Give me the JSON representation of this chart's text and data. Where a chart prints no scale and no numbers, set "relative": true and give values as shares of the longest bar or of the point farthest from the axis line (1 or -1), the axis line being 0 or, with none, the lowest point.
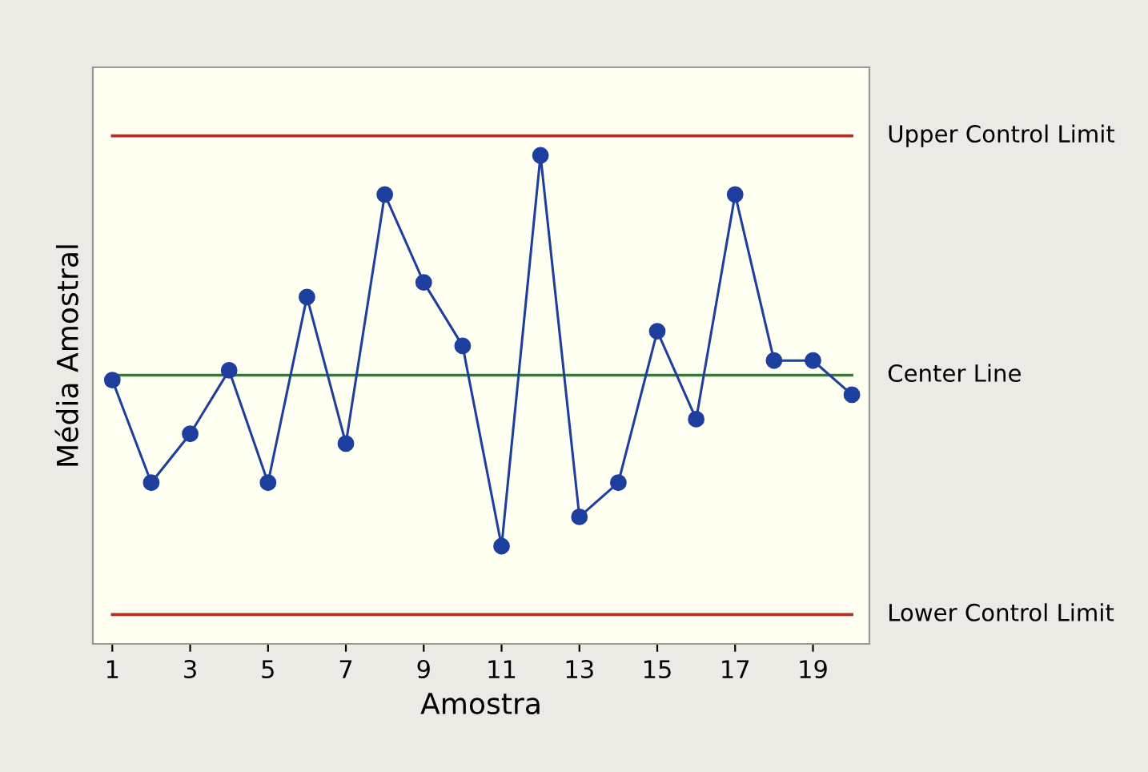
{
  "chart_data": {
    "type": "line",
    "relative": true,
    "xlabel": "Amostra",
    "ylabel": "Média Amostral",
    "x": [
      1,
      2,
      3,
      4,
      5,
      6,
      7,
      8,
      9,
      10,
      11,
      12,
      13,
      14,
      15,
      16,
      17,
      18,
      19,
      20
    ],
    "xlim": [
      0.5,
      20.45
    ],
    "xticks": [
      1,
      3,
      5,
      7,
      9,
      11,
      13,
      15,
      17,
      19
    ],
    "series": [
      {
        "color": "#1f3f9f",
        "values": [
          0.54,
          0.33,
          0.43,
          0.56,
          0.33,
          0.71,
          0.41,
          0.92,
          0.74,
          0.61,
          0.2,
          1,
          0.26,
          0.33,
          0.64,
          0.46,
          0.92,
          0.58,
          0.58,
          0.51
        ]
      }
    ],
    "marker": "circle",
    "line_style": "solid",
    "grid": false,
    "legend": false,
    "ref_lines": [
      {
        "axis": "y",
        "value": 1.04,
        "label": "Upper Control Limit",
        "color": "#b03028"
      },
      {
        "axis": "y",
        "value": 0.55,
        "label": "Center Line",
        "color": "#2a8030"
      },
      {
        "axis": "y",
        "value": 0.06,
        "label": "Lower Control Limit",
        "color": "#b03028"
      }
    ]
  }
}
